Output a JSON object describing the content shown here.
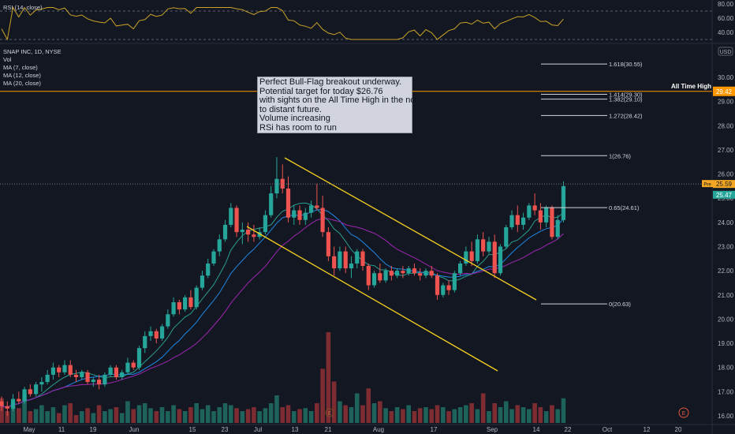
{
  "chart_data": {
    "type": "candlestick",
    "symbol_line": "SNAP INC, 1D, NYSE",
    "currency": "USD",
    "indicators": {
      "rsi": "RSI (14, close)",
      "vol": "Vol",
      "ma7": "MA (7, close)",
      "ma12": "MA (12, close)",
      "ma20": "MA (20, close)"
    },
    "price_ticks": [
      "30.00",
      "29.00",
      "28.00",
      "27.00",
      "26.00",
      "25.00",
      "24.00",
      "23.00",
      "22.00",
      "21.00",
      "20.00",
      "19.00",
      "18.00",
      "17.00",
      "16.00"
    ],
    "rsi_ticks": [
      "80.00",
      "60.00",
      "40.00"
    ],
    "x_ticks": [
      "May",
      "11",
      "19",
      "Jun",
      "15",
      "23",
      "Jul",
      "13",
      "21",
      "Aug",
      "17",
      "Sep",
      "14",
      "22",
      "Oct",
      "12",
      "20"
    ],
    "fib_levels": [
      {
        "label": "1.618(30.55)",
        "price": 30.55
      },
      {
        "label": "1.414(29.30)",
        "price": 29.3
      },
      {
        "label": "1.382(29.10)",
        "price": 29.1
      },
      {
        "label": "1.272(28.42)",
        "price": 28.42
      },
      {
        "label": "1(26.76)",
        "price": 26.76
      },
      {
        "label": "0.65(24.61)",
        "price": 24.61
      },
      {
        "label": "0(20.63)",
        "price": 20.63
      }
    ],
    "ath": {
      "label": "All Time High",
      "price": 29.42,
      "price_label": "29.42"
    },
    "pre_label": "Pre",
    "pre_price": "25.59",
    "last_price": "25.47",
    "event_marker": "E",
    "annotation": [
      "Perfect Bull-Flag breakout underway.",
      "Potential target for today $26.76",
      "with sights on the All Time High in the not",
      "to distant future.",
      "Volume increasing",
      "RSi has room to run"
    ],
    "candles": [
      [
        16.6,
        16.8,
        16.2,
        16.4
      ],
      [
        16.4,
        16.6,
        16.0,
        16.3
      ],
      [
        16.3,
        16.9,
        16.2,
        16.7
      ],
      [
        16.7,
        17.0,
        16.5,
        16.6
      ],
      [
        16.6,
        17.2,
        16.5,
        17.1
      ],
      [
        17.1,
        17.3,
        16.8,
        16.9
      ],
      [
        16.9,
        17.4,
        16.8,
        17.3
      ],
      [
        17.3,
        17.6,
        17.0,
        17.4
      ],
      [
        17.4,
        17.9,
        17.3,
        17.7
      ],
      [
        17.7,
        18.2,
        17.5,
        18.0
      ],
      [
        18.0,
        18.1,
        17.6,
        17.8
      ],
      [
        17.8,
        18.3,
        17.7,
        18.1
      ],
      [
        18.1,
        18.3,
        17.6,
        17.7
      ],
      [
        17.7,
        17.9,
        17.4,
        17.6
      ],
      [
        17.6,
        17.9,
        17.5,
        17.8
      ],
      [
        17.8,
        17.9,
        17.3,
        17.4
      ],
      [
        17.4,
        17.6,
        17.2,
        17.5
      ],
      [
        17.5,
        17.7,
        17.1,
        17.3
      ],
      [
        17.3,
        17.8,
        17.2,
        17.7
      ],
      [
        17.7,
        18.1,
        17.6,
        18.0
      ],
      [
        18.0,
        18.1,
        17.5,
        17.6
      ],
      [
        17.6,
        17.9,
        17.5,
        17.8
      ],
      [
        17.8,
        18.4,
        17.7,
        18.2
      ],
      [
        18.2,
        18.3,
        17.9,
        18.0
      ],
      [
        18.0,
        18.9,
        17.9,
        18.8
      ],
      [
        18.8,
        19.5,
        18.6,
        19.3
      ],
      [
        19.3,
        19.7,
        19.1,
        19.5
      ],
      [
        19.5,
        19.6,
        19.0,
        19.2
      ],
      [
        19.2,
        19.8,
        19.1,
        19.7
      ],
      [
        19.7,
        20.4,
        19.6,
        20.2
      ],
      [
        20.2,
        20.9,
        20.1,
        20.7
      ],
      [
        20.7,
        20.8,
        20.2,
        20.4
      ],
      [
        20.4,
        21.0,
        20.3,
        20.9
      ],
      [
        20.9,
        21.2,
        20.4,
        20.5
      ],
      [
        20.5,
        21.4,
        20.4,
        21.3
      ],
      [
        21.3,
        22.0,
        21.2,
        21.8
      ],
      [
        21.8,
        22.5,
        21.7,
        22.3
      ],
      [
        22.3,
        22.9,
        22.2,
        22.8
      ],
      [
        22.8,
        23.5,
        22.6,
        23.3
      ],
      [
        23.3,
        24.1,
        23.2,
        23.9
      ],
      [
        23.9,
        24.8,
        23.8,
        24.6
      ],
      [
        24.6,
        24.7,
        23.4,
        23.6
      ],
      [
        23.6,
        24.0,
        23.1,
        23.7
      ],
      [
        23.7,
        24.0,
        23.2,
        23.5
      ],
      [
        23.5,
        23.9,
        23.2,
        23.4
      ],
      [
        23.4,
        23.8,
        23.3,
        23.6
      ],
      [
        23.6,
        24.5,
        23.5,
        24.3
      ],
      [
        24.3,
        25.5,
        24.2,
        25.2
      ],
      [
        25.2,
        26.7,
        25.0,
        25.8
      ],
      [
        25.8,
        26.4,
        25.2,
        25.4
      ],
      [
        25.4,
        25.9,
        24.0,
        24.2
      ],
      [
        24.2,
        24.7,
        23.9,
        24.5
      ],
      [
        24.5,
        24.7,
        23.9,
        24.1
      ],
      [
        24.1,
        24.6,
        23.9,
        24.4
      ],
      [
        24.4,
        24.9,
        24.2,
        24.7
      ],
      [
        24.7,
        25.6,
        24.5,
        24.6
      ],
      [
        24.6,
        25.1,
        23.4,
        23.6
      ],
      [
        23.6,
        23.8,
        22.4,
        22.6
      ],
      [
        22.6,
        23.0,
        21.8,
        22.1
      ],
      [
        22.1,
        23.0,
        22.0,
        22.8
      ],
      [
        22.8,
        23.0,
        21.9,
        22.1
      ],
      [
        22.1,
        22.6,
        21.7,
        22.3
      ],
      [
        22.3,
        22.9,
        22.1,
        22.8
      ],
      [
        22.8,
        22.9,
        22.0,
        22.2
      ],
      [
        22.2,
        22.3,
        21.2,
        21.4
      ],
      [
        21.4,
        22.0,
        21.3,
        21.9
      ],
      [
        21.9,
        22.3,
        21.5,
        21.6
      ],
      [
        21.6,
        22.1,
        21.5,
        22.0
      ],
      [
        22.0,
        22.2,
        21.6,
        21.8
      ],
      [
        21.8,
        22.1,
        21.7,
        22.0
      ],
      [
        22.0,
        22.2,
        21.7,
        21.9
      ],
      [
        21.9,
        22.2,
        21.8,
        22.1
      ],
      [
        22.1,
        22.3,
        21.8,
        21.9
      ],
      [
        21.9,
        22.1,
        21.6,
        21.8
      ],
      [
        21.8,
        22.1,
        21.7,
        22.0
      ],
      [
        22.0,
        22.2,
        21.7,
        21.8
      ],
      [
        21.8,
        21.9,
        20.8,
        21.0
      ],
      [
        21.0,
        21.5,
        20.9,
        21.4
      ],
      [
        21.4,
        21.6,
        21.0,
        21.2
      ],
      [
        21.2,
        22.0,
        21.1,
        21.9
      ],
      [
        21.9,
        22.4,
        21.8,
        22.3
      ],
      [
        22.3,
        23.0,
        22.2,
        22.8
      ],
      [
        22.8,
        23.2,
        22.2,
        22.4
      ],
      [
        22.4,
        23.5,
        22.3,
        23.3
      ],
      [
        23.3,
        23.6,
        22.6,
        22.8
      ],
      [
        22.8,
        23.4,
        22.7,
        23.2
      ],
      [
        23.2,
        23.5,
        21.7,
        21.9
      ],
      [
        21.9,
        23.1,
        21.8,
        23.0
      ],
      [
        23.0,
        23.9,
        22.9,
        23.8
      ],
      [
        23.8,
        24.5,
        23.7,
        24.3
      ],
      [
        24.3,
        24.7,
        23.6,
        23.9
      ],
      [
        23.9,
        24.4,
        23.7,
        24.2
      ],
      [
        24.2,
        24.8,
        24.1,
        24.7
      ],
      [
        24.7,
        25.2,
        24.3,
        24.5
      ],
      [
        24.5,
        24.8,
        23.7,
        24.0
      ],
      [
        24.0,
        24.7,
        23.8,
        24.6
      ],
      [
        24.6,
        24.7,
        23.3,
        23.4
      ],
      [
        23.4,
        24.3,
        23.3,
        24.1
      ],
      [
        24.1,
        25.7,
        24.0,
        25.5
      ]
    ],
    "volume": [
      0.25,
      0.12,
      0.2,
      0.15,
      0.3,
      0.12,
      0.14,
      0.18,
      0.12,
      0.16,
      0.1,
      0.18,
      0.2,
      0.08,
      0.12,
      0.15,
      0.1,
      0.18,
      0.12,
      0.14,
      0.16,
      0.1,
      0.22,
      0.14,
      0.18,
      0.2,
      0.15,
      0.12,
      0.16,
      0.12,
      0.18,
      0.14,
      0.12,
      0.16,
      0.2,
      0.14,
      0.18,
      0.12,
      0.16,
      0.2,
      0.18,
      0.15,
      0.12,
      0.14,
      0.16,
      0.12,
      0.15,
      0.2,
      0.28,
      0.16,
      0.18,
      0.12,
      0.14,
      0.15,
      0.12,
      0.2,
      0.55,
      0.92,
      0.42,
      0.22,
      0.18,
      0.16,
      0.3,
      0.18,
      0.35,
      0.2,
      0.22,
      0.15,
      0.12,
      0.16,
      0.14,
      0.18,
      0.12,
      0.15,
      0.16,
      0.14,
      0.18,
      0.16,
      0.12,
      0.14,
      0.16,
      0.18,
      0.2,
      0.14,
      0.3,
      0.12,
      0.2,
      0.16,
      0.22,
      0.14,
      0.18,
      0.16,
      0.14,
      0.2,
      0.16,
      0.12,
      0.18,
      0.14,
      0.25
    ],
    "colors": {
      "up": "#26a69a",
      "down": "#ef5350",
      "ma7": "#2a9d8f",
      "ma12": "#1e88e5",
      "ma20": "#9c27b0",
      "channel": "#f5d020",
      "ath": "#ff9800",
      "rsi": "#c9a227"
    }
  }
}
